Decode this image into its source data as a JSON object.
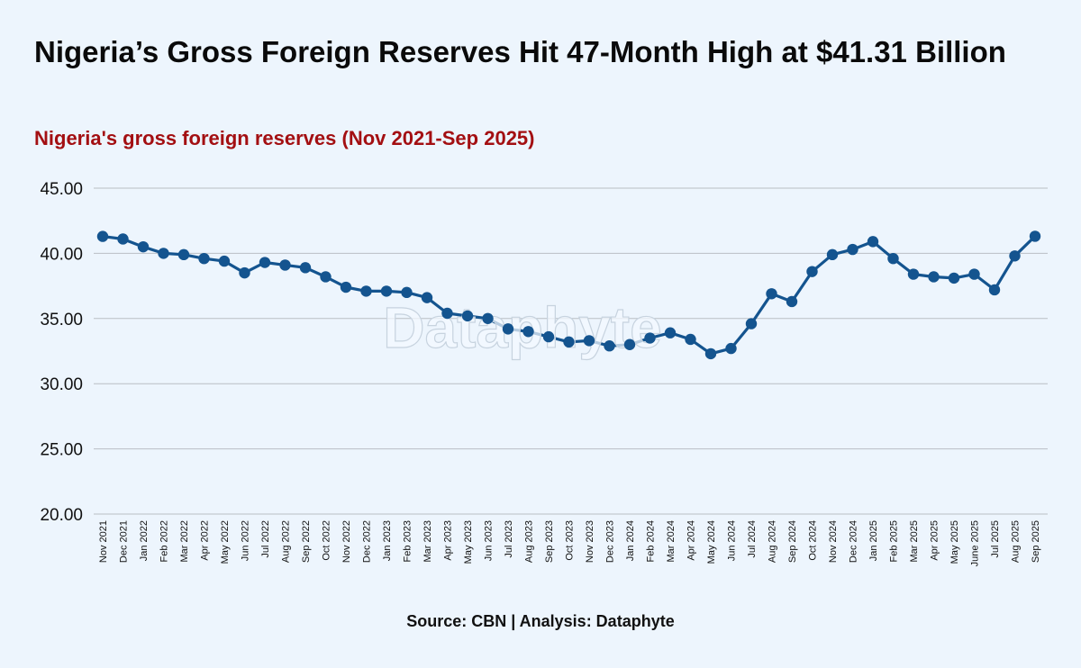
{
  "title": "Nigeria’s Gross Foreign Reserves Hit 47-Month High at $41.31 Billion",
  "subtitle": "Nigeria's gross foreign reserves (Nov 2021-Sep 2025)",
  "source": "Source: CBN | Analysis: Dataphyte",
  "watermark": "Dataphyte",
  "colors": {
    "background": "#edf5fd",
    "subtitle": "#a30f12",
    "line": "#14548f",
    "grid": "#b9bec4"
  },
  "chart_data": {
    "type": "line",
    "ylim": [
      20,
      45
    ],
    "yticks": [
      "20.00",
      "25.00",
      "30.00",
      "35.00",
      "40.00",
      "45.00"
    ],
    "grid": true,
    "categories": [
      "Nov 2021",
      "Dec 2021",
      "Jan 2022",
      "Feb 2022",
      "Mar 2022",
      "Apr 2022",
      "May 2022",
      "Jun 2022",
      "Jul 2022",
      "Aug 2022",
      "Sep 2022",
      "Oct 2022",
      "Nov 2022",
      "Dec 2022",
      "Jan 2023",
      "Feb 2023",
      "Mar 2023",
      "Apr 2023",
      "May 2023",
      "Jun 2023",
      "Jul 2023",
      "Aug 2023",
      "Sep 2023",
      "Oct 2023",
      "Nov 2023",
      "Dec 2023",
      "Jan 2024",
      "Feb 2024",
      "Mar 2024",
      "Apr 2024",
      "May 2024",
      "Jun 2024",
      "Jul 2024",
      "Aug 2024",
      "Sep 2024",
      "Oct 2024",
      "Nov 2024",
      "Dec 2024",
      "Jan 2025",
      "Feb 2025",
      "Mar 2025",
      "Apr 2025",
      "May 2025",
      "June 2025",
      "Jul 2025",
      "Aug 2025",
      "Sep 2025"
    ],
    "series": [
      {
        "values": [
          41.3,
          41.1,
          40.5,
          40.0,
          39.9,
          39.6,
          39.4,
          38.5,
          39.3,
          39.1,
          38.9,
          38.2,
          37.4,
          37.1,
          37.1,
          37.0,
          36.6,
          35.4,
          35.2,
          35.0,
          34.2,
          34.0,
          33.6,
          33.2,
          33.3,
          32.9,
          33.0,
          33.5,
          33.9,
          33.4,
          32.3,
          32.7,
          34.6,
          36.9,
          36.3,
          38.6,
          39.9,
          40.3,
          40.9,
          39.6,
          38.4,
          38.2,
          38.1,
          38.4,
          37.2,
          39.8,
          41.31
        ]
      }
    ]
  }
}
